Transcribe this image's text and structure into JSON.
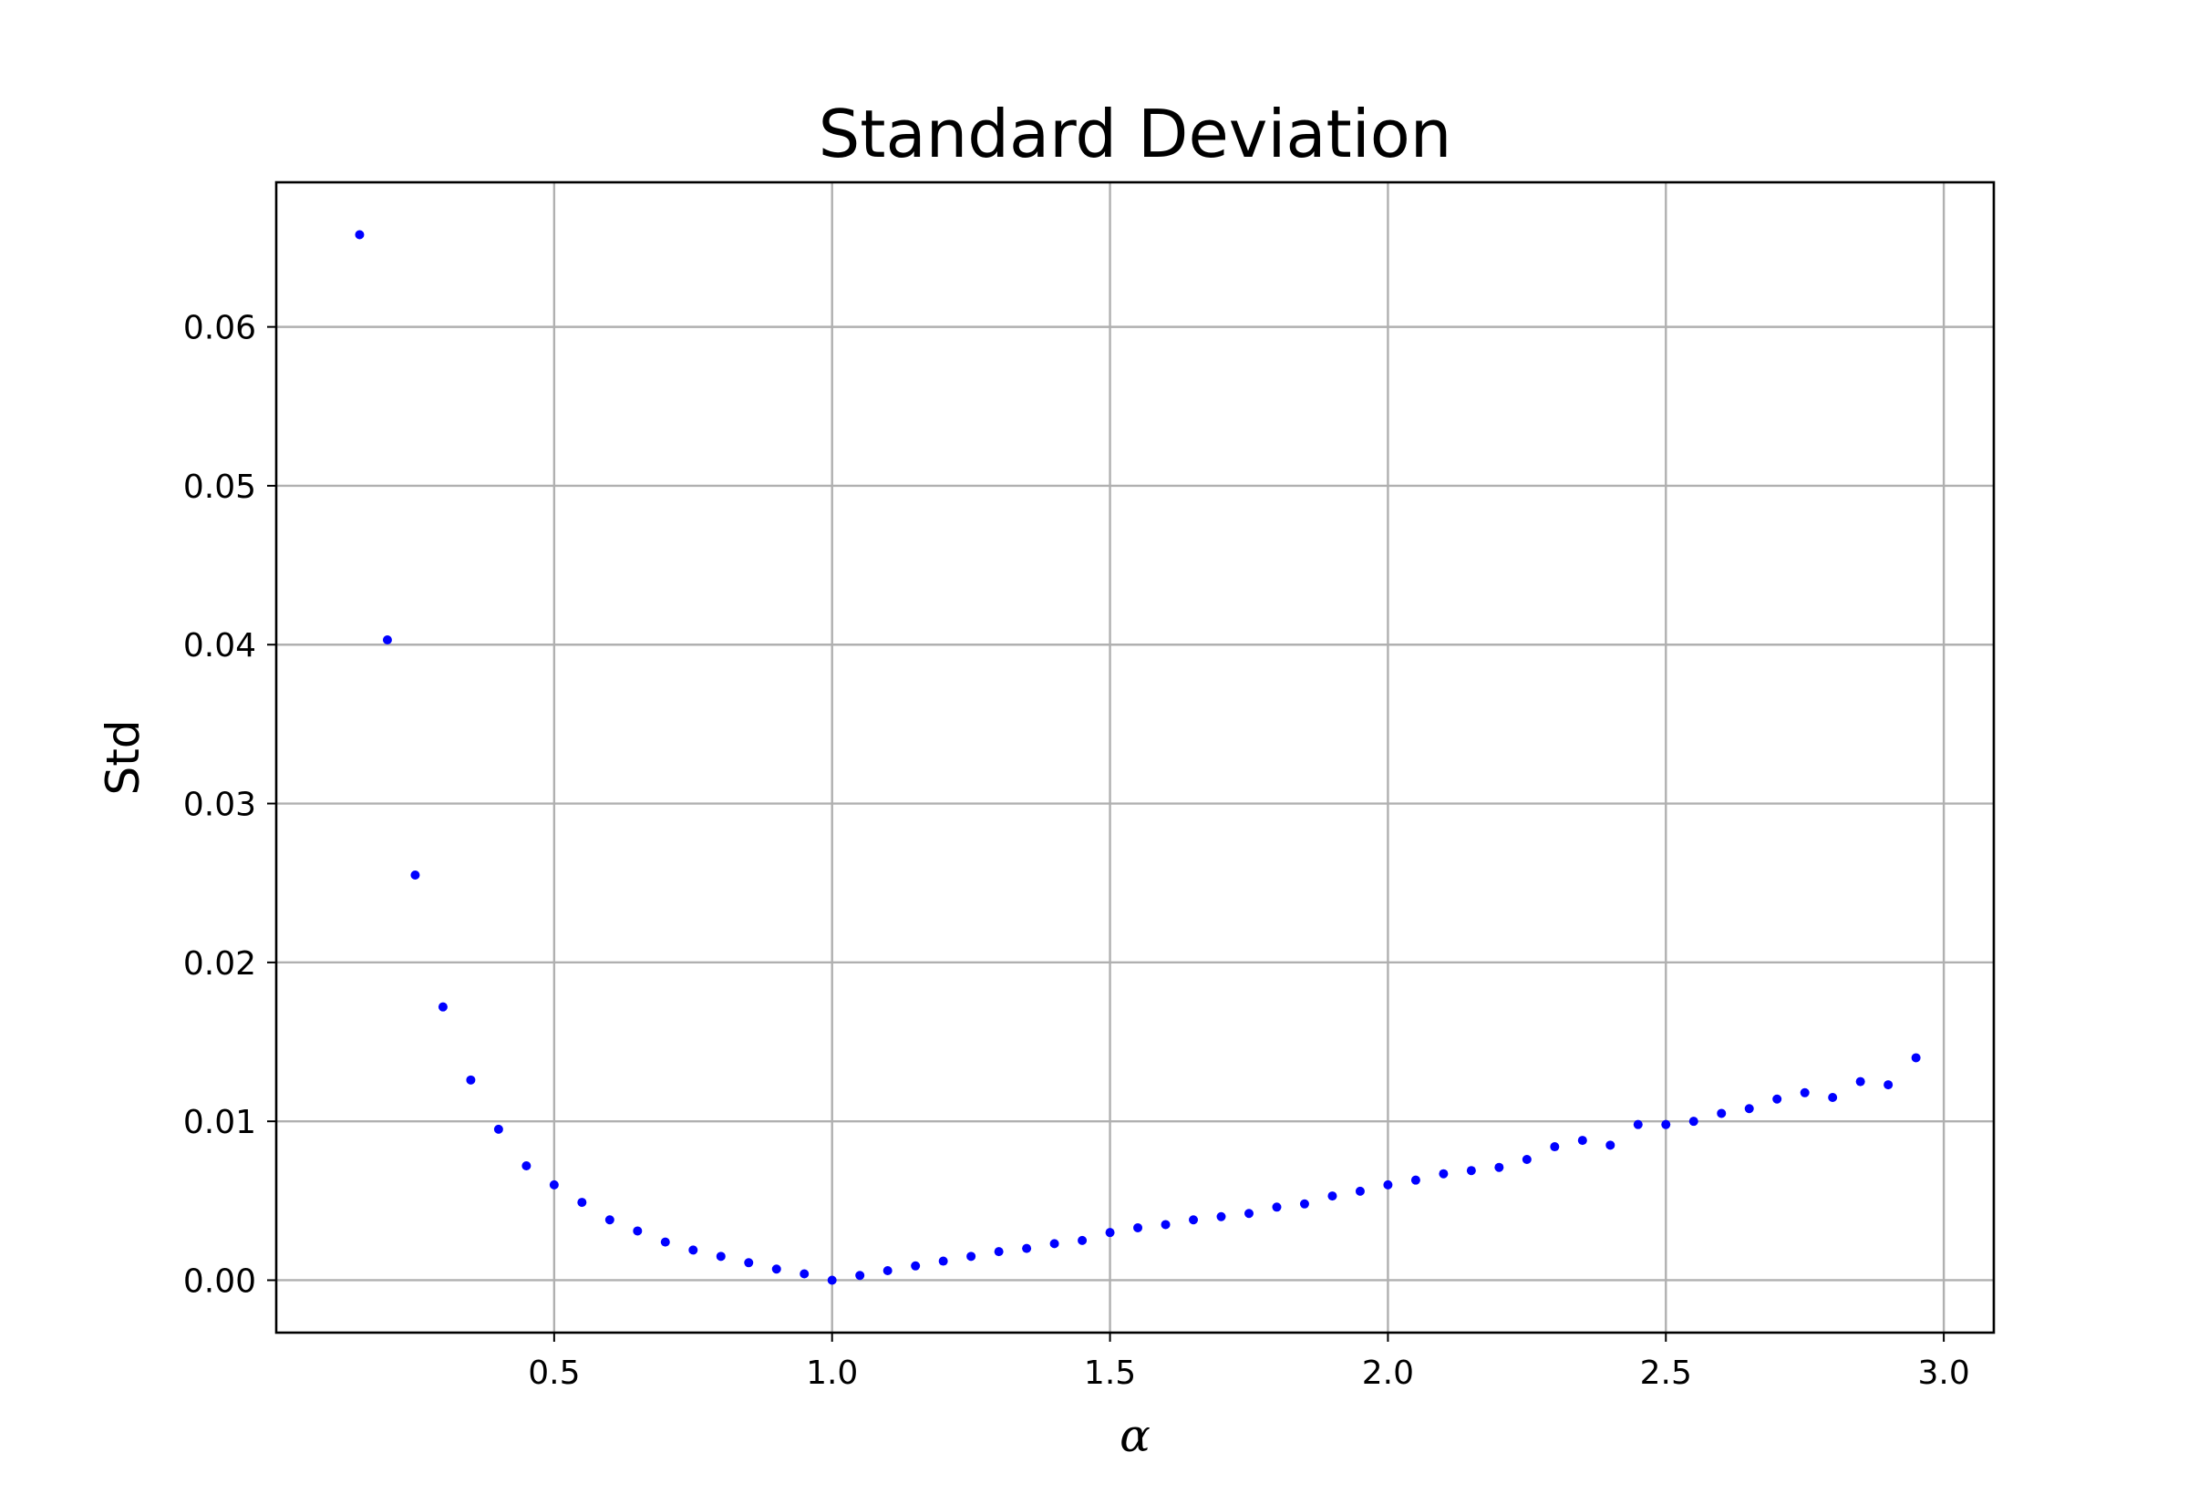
{
  "chart_data": {
    "type": "scatter",
    "title": "Standard Deviation",
    "xlabel": "α",
    "ylabel": "Std",
    "xlim": [
      0.0,
      3.09
    ],
    "ylim": [
      -0.0033,
      0.0691
    ],
    "xticks": [
      0.5,
      1.0,
      1.5,
      2.0,
      2.5,
      3.0
    ],
    "xtick_labels": [
      "0.5",
      "1.0",
      "1.5",
      "2.0",
      "2.5",
      "3.0"
    ],
    "yticks": [
      0.0,
      0.01,
      0.02,
      0.03,
      0.04,
      0.05,
      0.06
    ],
    "ytick_labels": [
      "0.00",
      "0.01",
      "0.02",
      "0.03",
      "0.04",
      "0.05",
      "0.06"
    ],
    "grid": true,
    "marker_color": "#0000ff",
    "series": [
      {
        "x": [
          0.15,
          0.2,
          0.25,
          0.3,
          0.35,
          0.4,
          0.45,
          0.5,
          0.55,
          0.6,
          0.65,
          0.7,
          0.75,
          0.8,
          0.85,
          0.9,
          0.95,
          1.0,
          1.05,
          1.1,
          1.15,
          1.2,
          1.25,
          1.3,
          1.35,
          1.4,
          1.45,
          1.5,
          1.55,
          1.6,
          1.65,
          1.7,
          1.75,
          1.8,
          1.85,
          1.9,
          1.95,
          2.0,
          2.05,
          2.1,
          2.15,
          2.2,
          2.25,
          2.3,
          2.35,
          2.4,
          2.45,
          2.5,
          2.55,
          2.6,
          2.65,
          2.7,
          2.75,
          2.8,
          2.85,
          2.9,
          2.95
        ],
        "values": [
          0.0658,
          0.0403,
          0.0255,
          0.0172,
          0.0126,
          0.0095,
          0.0072,
          0.006,
          0.0049,
          0.0038,
          0.0031,
          0.0024,
          0.0019,
          0.0015,
          0.0011,
          0.0007,
          0.0004,
          0.0,
          0.0003,
          0.0006,
          0.0009,
          0.0012,
          0.0015,
          0.0018,
          0.002,
          0.0023,
          0.0025,
          0.003,
          0.0033,
          0.0035,
          0.0038,
          0.004,
          0.0042,
          0.0046,
          0.0048,
          0.0053,
          0.0056,
          0.006,
          0.0063,
          0.0067,
          0.0069,
          0.0071,
          0.0076,
          0.0084,
          0.0088,
          0.0085,
          0.0098,
          0.0098,
          0.01,
          0.0105,
          0.0108,
          0.0114,
          0.0118,
          0.0115,
          0.0125,
          0.0123,
          0.014
        ]
      }
    ]
  }
}
